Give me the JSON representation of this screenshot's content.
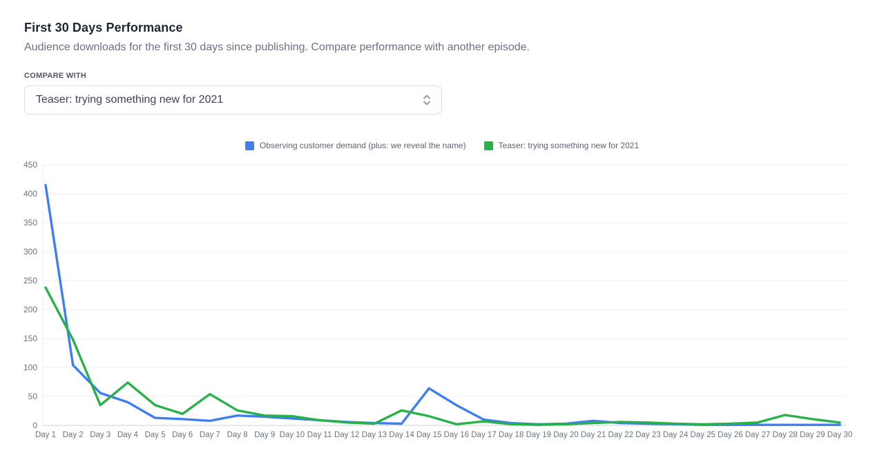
{
  "page": {
    "title": "First 30 Days Performance",
    "subtitle": "Audience downloads for the first 30 days since publishing. Compare performance with another episode."
  },
  "compare": {
    "label": "COMPARE WITH",
    "selected_option": "Teaser: trying something new for 2021"
  },
  "icons": {
    "select_chevron": "up-down-chevron"
  },
  "colors": {
    "series1_blue": "#3e7ef0",
    "series2_green": "#2ab04b",
    "grid_line": "#e9ecf0",
    "zero_line": "#ccd1d9",
    "axis_text": "#6b7280"
  },
  "chart_data": {
    "type": "line",
    "title": "",
    "xlabel": "",
    "ylabel": "",
    "ylim": [
      0,
      450
    ],
    "yticks": [
      0,
      50,
      100,
      150,
      200,
      250,
      300,
      350,
      400,
      450
    ],
    "grid": "horizontal",
    "legend_position": "top",
    "categories": [
      "Day 1",
      "Day 2",
      "Day 3",
      "Day 4",
      "Day 5",
      "Day 6",
      "Day 7",
      "Day 8",
      "Day 9",
      "Day 10",
      "Day 11",
      "Day 12",
      "Day 13",
      "Day 14",
      "Day 15",
      "Day 16",
      "Day 17",
      "Day 18",
      "Day 19",
      "Day 20",
      "Day 21",
      "Day 22",
      "Day 23",
      "Day 24",
      "Day 25",
      "Day 26",
      "Day 27",
      "Day 28",
      "Day 29",
      "Day 30"
    ],
    "series": [
      {
        "name": "Observing customer demand (plus: we reveal the name)",
        "color": "#3e7ef0",
        "values": [
          415,
          104,
          56,
          40,
          13,
          11,
          8,
          17,
          15,
          12,
          9,
          6,
          4,
          3,
          64,
          35,
          10,
          4,
          2,
          3,
          8,
          4,
          3,
          2,
          1,
          1,
          1,
          1,
          1,
          1
        ]
      },
      {
        "name": "Teaser: trying something new for 2021",
        "color": "#2ab04b",
        "values": [
          238,
          148,
          35,
          74,
          35,
          20,
          54,
          26,
          17,
          16,
          9,
          5,
          3,
          26,
          16,
          2,
          7,
          2,
          1,
          2,
          4,
          6,
          5,
          3,
          2,
          3,
          5,
          18,
          11,
          5
        ]
      }
    ]
  }
}
